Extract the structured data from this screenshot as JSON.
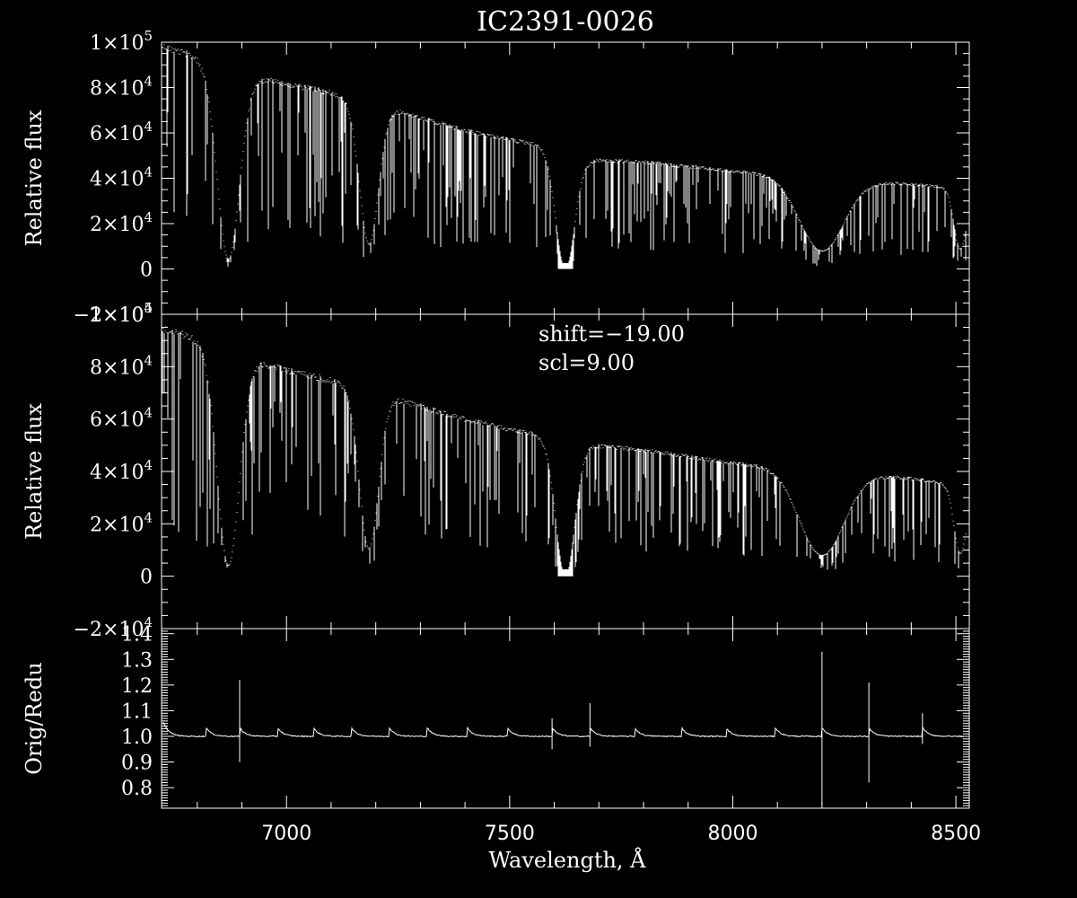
{
  "chart_data": [
    {
      "type": "line",
      "title": "IC2391-0026",
      "ylabel": "Relative flux",
      "xlim": [
        6720,
        8530
      ],
      "ylim": [
        -20000,
        100000
      ],
      "x_ticks": [
        {
          "v": 7000,
          "label": "7000"
        },
        {
          "v": 7500,
          "label": "7500"
        },
        {
          "v": 8000,
          "label": "8000"
        },
        {
          "v": 8500,
          "label": "8500"
        }
      ],
      "y_ticks": [
        {
          "v": 100000,
          "m": "1×10",
          "e": "5"
        },
        {
          "v": 80000,
          "m": "8×10",
          "e": "4"
        },
        {
          "v": 60000,
          "m": "6×10",
          "e": "4"
        },
        {
          "v": 40000,
          "m": "4×10",
          "e": "4"
        },
        {
          "v": 20000,
          "m": "2×10",
          "e": "4"
        },
        {
          "v": 0,
          "m": "0",
          "e": ""
        },
        {
          "v": -20000,
          "m": "−2×10",
          "e": "4"
        }
      ],
      "continuum": [
        [
          6720,
          100000
        ],
        [
          6800,
          95000
        ],
        [
          6900,
          87000
        ],
        [
          7000,
          83000
        ],
        [
          7100,
          79000
        ],
        [
          7200,
          74000
        ],
        [
          7300,
          68000
        ],
        [
          7400,
          62000
        ],
        [
          7500,
          58000
        ],
        [
          7590,
          55000
        ],
        [
          7680,
          49000
        ],
        [
          7800,
          48000
        ],
        [
          8000,
          44000
        ],
        [
          8200,
          41000
        ],
        [
          8400,
          38000
        ],
        [
          8530,
          36000
        ]
      ],
      "absorption_bands": [
        {
          "center": 6870,
          "width": 35,
          "depth": 0.95
        },
        {
          "center": 7185,
          "width": 30,
          "depth": 0.85
        },
        {
          "center": 7625,
          "width": 30,
          "depth": 1.0
        },
        {
          "center": 8200,
          "width": 70,
          "depth": 0.8
        },
        {
          "center": 8510,
          "width": 20,
          "depth": 0.75
        }
      ]
    },
    {
      "type": "line",
      "title": "",
      "ylabel": "Relative flux",
      "xlim": [
        6720,
        8530
      ],
      "ylim": [
        -20000,
        100000
      ],
      "annotations": [
        "shift=−19.00",
        "scl=9.00"
      ],
      "y_ticks": [
        {
          "v": 100000,
          "m": "1×10",
          "e": "5"
        },
        {
          "v": 80000,
          "m": "8×10",
          "e": "4"
        },
        {
          "v": 60000,
          "m": "6×10",
          "e": "4"
        },
        {
          "v": 40000,
          "m": "4×10",
          "e": "4"
        },
        {
          "v": 20000,
          "m": "2×10",
          "e": "4"
        },
        {
          "v": 0,
          "m": "0",
          "e": ""
        },
        {
          "v": -20000,
          "m": "−2×10",
          "e": "4"
        }
      ],
      "continuum": [
        [
          6720,
          96000
        ],
        [
          6800,
          92000
        ],
        [
          6900,
          85000
        ],
        [
          7000,
          80000
        ],
        [
          7100,
          76000
        ],
        [
          7200,
          71000
        ],
        [
          7300,
          66000
        ],
        [
          7400,
          61000
        ],
        [
          7500,
          57000
        ],
        [
          7590,
          54000
        ],
        [
          7680,
          51000
        ],
        [
          7800,
          49000
        ],
        [
          8000,
          44000
        ],
        [
          8200,
          41000
        ],
        [
          8400,
          38000
        ],
        [
          8530,
          35000
        ]
      ],
      "absorption_bands": [
        {
          "center": 6870,
          "width": 35,
          "depth": 0.95
        },
        {
          "center": 7185,
          "width": 30,
          "depth": 0.85
        },
        {
          "center": 7625,
          "width": 30,
          "depth": 1.0
        },
        {
          "center": 8200,
          "width": 70,
          "depth": 0.8
        },
        {
          "center": 8510,
          "width": 20,
          "depth": 0.75
        }
      ]
    },
    {
      "type": "line",
      "title": "",
      "xlabel": "Wavelength, Å",
      "ylabel": "Orig/Redu",
      "xlim": [
        6720,
        8530
      ],
      "ylim": [
        0.72,
        1.42
      ],
      "y_ticks": [
        {
          "v": 1.4,
          "label": "1.4"
        },
        {
          "v": 1.3,
          "label": "1.3"
        },
        {
          "v": 1.2,
          "label": "1.2"
        },
        {
          "v": 1.1,
          "label": "1.1"
        },
        {
          "v": 1.0,
          "label": "1.0"
        },
        {
          "v": 0.9,
          "label": "0.9"
        },
        {
          "v": 0.8,
          "label": "0.8"
        }
      ],
      "baseline": 1.0,
      "order_edges": [
        6730,
        6820,
        6895,
        6980,
        7060,
        7145,
        7230,
        7315,
        7405,
        7495,
        7595,
        7680,
        7780,
        7885,
        7985,
        8095,
        8200,
        8305,
        8425
      ],
      "spikes": [
        {
          "x": 6895,
          "hi": 1.22,
          "lo": 0.9
        },
        {
          "x": 7595,
          "hi": 1.07,
          "lo": 0.95
        },
        {
          "x": 7680,
          "hi": 1.13,
          "lo": 0.96
        },
        {
          "x": 8200,
          "hi": 1.33,
          "lo": 0.73
        },
        {
          "x": 8305,
          "hi": 1.21,
          "lo": 0.82
        },
        {
          "x": 8425,
          "hi": 1.09,
          "lo": 0.97
        }
      ]
    }
  ]
}
